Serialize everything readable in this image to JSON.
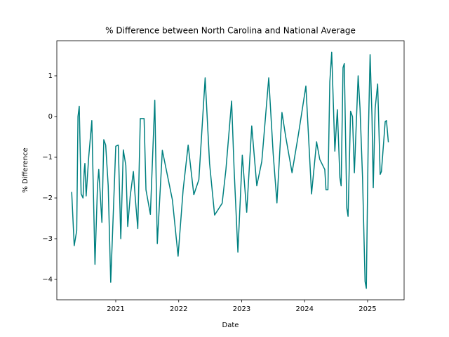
{
  "chart_data": {
    "type": "line",
    "title": "% Difference between North Carolina and National Average",
    "xlabel": "Date",
    "ylabel": "% Difference",
    "color": "#008080",
    "x": [
      2020.3,
      2020.34,
      2020.38,
      2020.4,
      2020.42,
      2020.45,
      2020.48,
      2020.5,
      2020.51,
      2020.53,
      2020.57,
      2020.62,
      2020.67,
      2020.71,
      2020.73,
      2020.78,
      2020.81,
      2020.84,
      2020.88,
      2020.92,
      2020.97,
      2021.0,
      2021.04,
      2021.08,
      2021.12,
      2021.16,
      2021.19,
      2021.23,
      2021.28,
      2021.31,
      2021.35,
      2021.39,
      2021.45,
      2021.48,
      2021.55,
      2021.62,
      2021.66,
      2021.74,
      2021.9,
      2021.99,
      2022.07,
      2022.15,
      2022.24,
      2022.32,
      2022.42,
      2022.49,
      2022.57,
      2022.69,
      2022.75,
      2022.84,
      2022.88,
      2022.94,
      2023.01,
      2023.08,
      2023.16,
      2023.24,
      2023.32,
      2023.43,
      2023.5,
      2023.56,
      2023.64,
      2023.7,
      2023.8,
      2023.9,
      2024.02,
      2024.11,
      2024.19,
      2024.24,
      2024.32,
      2024.34,
      2024.37,
      2024.4,
      2024.43,
      2024.48,
      2024.52,
      2024.56,
      2024.58,
      2024.61,
      2024.63,
      2024.67,
      2024.69,
      2024.73,
      2024.76,
      2024.79,
      2024.85,
      2024.88,
      2024.92,
      2024.96,
      2024.98,
      2025.01,
      2025.04,
      2025.07,
      2025.09,
      2025.12,
      2025.16,
      2025.2,
      2025.22,
      2025.28,
      2025.3,
      2025.33
    ],
    "values": [
      -1.85,
      -3.17,
      -2.8,
      0.0,
      0.25,
      -1.9,
      -2.0,
      -1.3,
      -1.15,
      -1.95,
      -1.0,
      -0.1,
      -3.63,
      -1.7,
      -1.3,
      -2.6,
      -0.57,
      -0.7,
      -1.7,
      -4.07,
      -2.0,
      -0.73,
      -0.7,
      -3.0,
      -0.82,
      -1.2,
      -2.7,
      -1.95,
      -1.35,
      -2.0,
      -2.75,
      -0.05,
      -0.05,
      -1.8,
      -2.4,
      0.4,
      -3.12,
      -0.83,
      -2.05,
      -3.43,
      -1.8,
      -0.7,
      -1.92,
      -1.55,
      0.95,
      -1.15,
      -2.42,
      -2.13,
      -1.3,
      0.38,
      -1.3,
      -3.33,
      -0.95,
      -2.35,
      -0.23,
      -1.7,
      -1.1,
      0.95,
      -0.9,
      -2.12,
      0.1,
      -0.5,
      -1.38,
      -0.45,
      0.75,
      -1.9,
      -0.62,
      -1.05,
      -1.3,
      -1.8,
      -1.8,
      0.85,
      1.58,
      -0.85,
      0.17,
      -1.5,
      -1.7,
      1.2,
      1.3,
      -2.25,
      -2.45,
      0.13,
      0.0,
      -1.38,
      1.0,
      0.2,
      -1.5,
      -4.05,
      -4.22,
      -0.6,
      1.52,
      0.0,
      -1.75,
      0.2,
      0.8,
      -1.42,
      -1.35,
      -0.12,
      -0.1,
      -0.63
    ],
    "xlim": [
      2020.064,
      2025.58
    ],
    "xticks": [
      2021,
      2022,
      2023,
      2024,
      2025
    ],
    "ylim": [
      -4.5,
      1.862
    ],
    "yticks": [
      {
        "value": -4,
        "label": "−4"
      },
      {
        "value": -3,
        "label": "−3"
      },
      {
        "value": -2,
        "label": "−2"
      },
      {
        "value": -1,
        "label": "−1"
      },
      0,
      1
    ]
  }
}
